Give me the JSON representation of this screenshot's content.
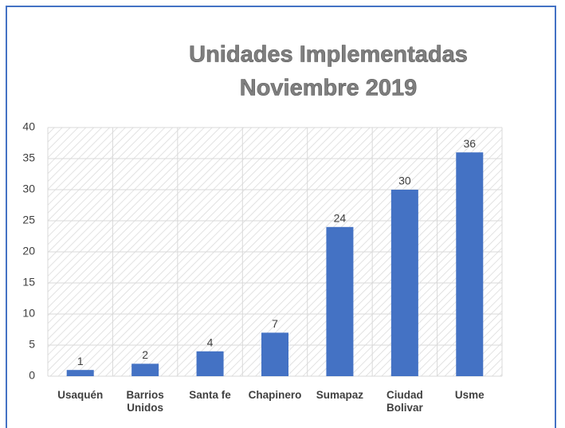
{
  "chart_data": {
    "type": "bar",
    "title": [
      "Unidades Implementadas",
      "Noviembre 2019"
    ],
    "categories": [
      "Usaquén",
      "Barrios Unidos",
      "Santa fe",
      "Chapinero",
      "Sumapaz",
      "Ciudad Bolivar",
      "Usme"
    ],
    "values": [
      1,
      2,
      4,
      7,
      24,
      30,
      36
    ],
    "color": "#4472c4",
    "ylim": [
      0,
      40
    ],
    "yticks": [
      0,
      5,
      10,
      15,
      20,
      25,
      30,
      35,
      40
    ],
    "grid": true
  }
}
